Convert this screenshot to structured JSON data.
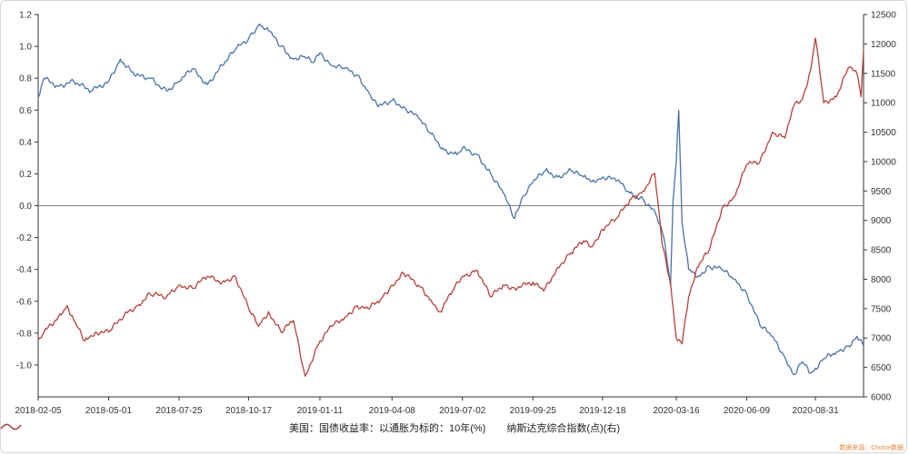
{
  "chart_data": {
    "type": "line",
    "title": "",
    "x_ticks": [
      "2018-02-05",
      "2018-05-01",
      "2018-07-25",
      "2018-10-17",
      "2019-01-11",
      "2019-04-08",
      "2019-07-02",
      "2019-09-25",
      "2019-12-18",
      "2020-03-16",
      "2020-06-09",
      "2020-08-31"
    ],
    "y_left": {
      "min": -1.2,
      "max": 1.2,
      "ticks": [
        "1.2",
        "1.0",
        "0.8",
        "0.6",
        "0.4",
        "0.2",
        "0.0",
        "-0.2",
        "-0.4",
        "-0.6",
        "-0.8",
        "-1.0"
      ]
    },
    "y_right": {
      "min": 6000,
      "max": 12500,
      "ticks": [
        "12500",
        "12000",
        "11500",
        "11000",
        "10500",
        "10000",
        "9500",
        "9000",
        "8500",
        "8000",
        "7500",
        "7000",
        "6500",
        "6000"
      ]
    },
    "zero_line": true,
    "grid": false,
    "legend_position": "bottom",
    "series": [
      {
        "name": "美国：国债收益率：以通胀为标的：10年(%)",
        "axis": "left",
        "color": "#4a72a8",
        "points": [
          [
            "2018-02-05",
            0.68
          ],
          [
            "2018-02-12",
            0.8
          ],
          [
            "2018-03-01",
            0.75
          ],
          [
            "2018-03-20",
            0.78
          ],
          [
            "2018-04-10",
            0.72
          ],
          [
            "2018-05-01",
            0.78
          ],
          [
            "2018-05-15",
            0.92
          ],
          [
            "2018-06-01",
            0.82
          ],
          [
            "2018-06-20",
            0.8
          ],
          [
            "2018-07-10",
            0.72
          ],
          [
            "2018-07-25",
            0.78
          ],
          [
            "2018-08-10",
            0.86
          ],
          [
            "2018-08-28",
            0.76
          ],
          [
            "2018-09-15",
            0.88
          ],
          [
            "2018-10-01",
            0.98
          ],
          [
            "2018-10-17",
            1.05
          ],
          [
            "2018-10-30",
            1.14
          ],
          [
            "2018-11-10",
            1.1
          ],
          [
            "2018-11-25",
            1.0
          ],
          [
            "2018-12-10",
            0.92
          ],
          [
            "2018-12-20",
            0.94
          ],
          [
            "2019-01-04",
            0.9
          ],
          [
            "2019-01-11",
            0.96
          ],
          [
            "2019-01-25",
            0.88
          ],
          [
            "2019-02-10",
            0.86
          ],
          [
            "2019-02-25",
            0.82
          ],
          [
            "2019-03-10",
            0.72
          ],
          [
            "2019-03-22",
            0.62
          ],
          [
            "2019-04-08",
            0.66
          ],
          [
            "2019-04-22",
            0.62
          ],
          [
            "2019-05-10",
            0.55
          ],
          [
            "2019-05-25",
            0.45
          ],
          [
            "2019-06-10",
            0.35
          ],
          [
            "2019-06-25",
            0.32
          ],
          [
            "2019-07-02",
            0.36
          ],
          [
            "2019-07-20",
            0.32
          ],
          [
            "2019-08-05",
            0.2
          ],
          [
            "2019-08-20",
            0.08
          ],
          [
            "2019-09-03",
            -0.08
          ],
          [
            "2019-09-12",
            0.05
          ],
          [
            "2019-09-25",
            0.15
          ],
          [
            "2019-10-10",
            0.22
          ],
          [
            "2019-10-25",
            0.18
          ],
          [
            "2019-11-10",
            0.22
          ],
          [
            "2019-11-25",
            0.18
          ],
          [
            "2019-12-05",
            0.15
          ],
          [
            "2019-12-18",
            0.18
          ],
          [
            "2020-01-05",
            0.16
          ],
          [
            "2020-01-20",
            0.08
          ],
          [
            "2020-02-05",
            0.04
          ],
          [
            "2020-02-20",
            -0.05
          ],
          [
            "2020-03-01",
            -0.2
          ],
          [
            "2020-03-09",
            -0.5
          ],
          [
            "2020-03-12",
            0.02
          ],
          [
            "2020-03-16",
            0.28
          ],
          [
            "2020-03-19",
            0.6
          ],
          [
            "2020-03-23",
            -0.1
          ],
          [
            "2020-03-31",
            -0.4
          ],
          [
            "2020-04-10",
            -0.45
          ],
          [
            "2020-04-25",
            -0.38
          ],
          [
            "2020-05-10",
            -0.4
          ],
          [
            "2020-05-25",
            -0.46
          ],
          [
            "2020-06-09",
            -0.55
          ],
          [
            "2020-06-25",
            -0.75
          ],
          [
            "2020-07-10",
            -0.82
          ],
          [
            "2020-07-25",
            -0.95
          ],
          [
            "2020-08-05",
            -1.06
          ],
          [
            "2020-08-15",
            -0.98
          ],
          [
            "2020-08-25",
            -1.05
          ],
          [
            "2020-08-31",
            -1.02
          ],
          [
            "2020-09-10",
            -0.96
          ],
          [
            "2020-09-25",
            -0.92
          ],
          [
            "2020-10-10",
            -0.88
          ],
          [
            "2020-10-20",
            -0.82
          ],
          [
            "2020-10-28",
            -0.88
          ]
        ]
      },
      {
        "name": "纳斯达克综合指数(点)(右)",
        "axis": "right",
        "color": "#b5403a",
        "points": [
          [
            "2018-02-05",
            6970
          ],
          [
            "2018-02-12",
            7100
          ],
          [
            "2018-03-01",
            7350
          ],
          [
            "2018-03-12",
            7550
          ],
          [
            "2018-03-20",
            7300
          ],
          [
            "2018-04-02",
            6950
          ],
          [
            "2018-04-15",
            7100
          ],
          [
            "2018-05-01",
            7100
          ],
          [
            "2018-05-20",
            7400
          ],
          [
            "2018-06-05",
            7550
          ],
          [
            "2018-06-20",
            7750
          ],
          [
            "2018-07-10",
            7700
          ],
          [
            "2018-07-25",
            7900
          ],
          [
            "2018-08-10",
            7850
          ],
          [
            "2018-08-28",
            8050
          ],
          [
            "2018-09-15",
            7950
          ],
          [
            "2018-10-01",
            8050
          ],
          [
            "2018-10-17",
            7500
          ],
          [
            "2018-10-29",
            7200
          ],
          [
            "2018-11-10",
            7450
          ],
          [
            "2018-11-25",
            7100
          ],
          [
            "2018-12-10",
            7300
          ],
          [
            "2018-12-24",
            6350
          ],
          [
            "2019-01-11",
            6950
          ],
          [
            "2019-01-25",
            7200
          ],
          [
            "2019-02-10",
            7350
          ],
          [
            "2019-02-25",
            7550
          ],
          [
            "2019-03-10",
            7500
          ],
          [
            "2019-03-25",
            7650
          ],
          [
            "2019-04-08",
            7900
          ],
          [
            "2019-04-22",
            8100
          ],
          [
            "2019-05-10",
            7900
          ],
          [
            "2019-05-25",
            7650
          ],
          [
            "2019-06-05",
            7450
          ],
          [
            "2019-06-20",
            7800
          ],
          [
            "2019-07-02",
            8050
          ],
          [
            "2019-07-20",
            8150
          ],
          [
            "2019-08-05",
            7700
          ],
          [
            "2019-08-20",
            7900
          ],
          [
            "2019-09-03",
            7850
          ],
          [
            "2019-09-25",
            7950
          ],
          [
            "2019-10-08",
            7800
          ],
          [
            "2019-10-25",
            8200
          ],
          [
            "2019-11-10",
            8450
          ],
          [
            "2019-11-25",
            8650
          ],
          [
            "2019-12-05",
            8550
          ],
          [
            "2019-12-18",
            8850
          ],
          [
            "2020-01-05",
            9050
          ],
          [
            "2020-01-20",
            9350
          ],
          [
            "2020-02-05",
            9500
          ],
          [
            "2020-02-19",
            9800
          ],
          [
            "2020-02-28",
            8600
          ],
          [
            "2020-03-09",
            7950
          ],
          [
            "2020-03-16",
            7000
          ],
          [
            "2020-03-23",
            6900
          ],
          [
            "2020-03-31",
            7700
          ],
          [
            "2020-04-10",
            8200
          ],
          [
            "2020-04-25",
            8500
          ],
          [
            "2020-05-10",
            9200
          ],
          [
            "2020-05-25",
            9400
          ],
          [
            "2020-06-09",
            9950
          ],
          [
            "2020-06-25",
            10000
          ],
          [
            "2020-07-10",
            10500
          ],
          [
            "2020-07-25",
            10400
          ],
          [
            "2020-08-05",
            10950
          ],
          [
            "2020-08-15",
            11050
          ],
          [
            "2020-08-25",
            11550
          ],
          [
            "2020-08-31",
            12100
          ],
          [
            "2020-09-10",
            11000
          ],
          [
            "2020-09-25",
            11100
          ],
          [
            "2020-10-10",
            11600
          ],
          [
            "2020-10-20",
            11500
          ],
          [
            "2020-10-25",
            11100
          ],
          [
            "2020-10-28",
            11900
          ]
        ]
      }
    ]
  },
  "source_text": "数据来源：Choice数据"
}
